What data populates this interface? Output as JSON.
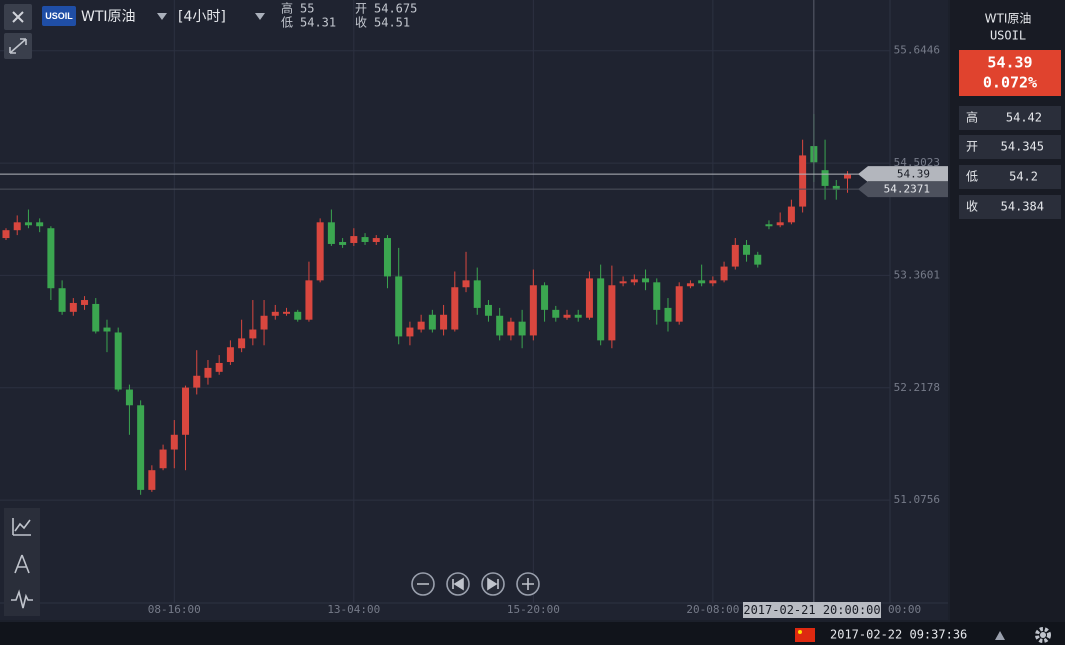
{
  "header": {
    "badge": "USOIL",
    "symbol": "WTI原油",
    "interval": "[4小时]",
    "labels": {
      "high": "高",
      "open": "开",
      "low": "低",
      "close": "收"
    }
  },
  "sidebar": {
    "name": "WTI原油",
    "code": "USOIL",
    "change": "0.072%"
  },
  "status_bar": {
    "datetime": "2017-02-22 09:37:36"
  },
  "chart_data": {
    "type": "candlestick",
    "categories": [
      null,
      null,
      null,
      null,
      null,
      null,
      null,
      null,
      null,
      null,
      null,
      null,
      null,
      null,
      null,
      "08-16:00",
      null,
      null,
      null,
      null,
      null,
      null,
      null,
      null,
      null,
      null,
      null,
      null,
      null,
      null,
      null,
      "13-04:00",
      null,
      null,
      null,
      null,
      null,
      null,
      null,
      null,
      null,
      null,
      null,
      null,
      null,
      null,
      null,
      "15-20:00",
      null,
      null,
      null,
      null,
      null,
      null,
      null,
      null,
      null,
      null,
      null,
      null,
      null,
      null,
      null,
      "20-08:00",
      null,
      null,
      null,
      null,
      null,
      null,
      null,
      null,
      null,
      null,
      null,
      null
    ],
    "open": [
      53.74,
      53.82,
      53.9,
      53.9,
      53.84,
      53.23,
      52.99,
      53.06,
      53.07,
      52.83,
      52.78,
      52.2,
      52.04,
      51.18,
      51.4,
      51.59,
      51.74,
      52.22,
      52.32,
      52.38,
      52.48,
      52.62,
      52.72,
      52.81,
      52.95,
      52.97,
      52.99,
      52.91,
      53.31,
      53.9,
      53.7,
      53.69,
      53.75,
      53.7,
      53.74,
      53.35,
      52.74,
      52.81,
      52.96,
      52.81,
      52.81,
      53.24,
      53.31,
      53.06,
      52.95,
      52.75,
      52.89,
      52.75,
      53.26,
      53.01,
      52.93,
      52.96,
      52.93,
      53.33,
      52.7,
      53.28,
      53.29,
      53.33,
      53.29,
      53.03,
      52.89,
      53.25,
      53.31,
      53.28,
      53.31,
      53.45,
      53.67,
      53.57,
      53.88,
      53.87,
      53.9,
      54.06,
      54.675,
      54.43,
      54.27,
      54.345
    ],
    "high": [
      53.84,
      53.97,
      54.03,
      53.94,
      53.86,
      53.31,
      53.13,
      53.15,
      53.13,
      52.91,
      52.83,
      52.25,
      52.09,
      51.43,
      51.64,
      51.89,
      52.24,
      52.6,
      52.5,
      52.55,
      52.7,
      52.91,
      53.11,
      53.11,
      53.06,
      53.03,
      53.01,
      53.5,
      53.94,
      54.03,
      53.74,
      53.84,
      53.79,
      53.77,
      53.77,
      53.64,
      52.89,
      52.96,
      53.01,
      53.06,
      53.4,
      53.6,
      53.44,
      53.11,
      53.03,
      52.93,
      53.01,
      53.42,
      53.29,
      53.05,
      53.01,
      53.01,
      53.4,
      53.47,
      53.46,
      53.35,
      53.37,
      53.42,
      53.33,
      53.13,
      53.29,
      53.31,
      53.47,
      53.35,
      53.5,
      53.74,
      53.72,
      53.6,
      53.92,
      54.0,
      54.13,
      54.74,
      55,
      54.74,
      54.33,
      54.42
    ],
    "low": [
      53.72,
      53.77,
      53.84,
      53.8,
      53.11,
      52.96,
      52.95,
      53.01,
      52.77,
      52.58,
      52.18,
      51.74,
      51.13,
      51.16,
      51.38,
      51.4,
      51.38,
      52.15,
      52.25,
      52.35,
      52.45,
      52.58,
      52.65,
      52.65,
      52.91,
      52.95,
      52.89,
      52.89,
      53.29,
      53.66,
      53.64,
      53.66,
      53.67,
      53.67,
      53.23,
      52.66,
      52.65,
      52.78,
      52.78,
      52.75,
      52.79,
      53.19,
      52.96,
      52.89,
      52.7,
      52.7,
      52.62,
      52.7,
      52.89,
      52.89,
      52.91,
      52.89,
      52.91,
      52.65,
      52.62,
      53.25,
      53.26,
      53.21,
      52.86,
      52.79,
      52.86,
      53.23,
      53.25,
      53.25,
      53.29,
      53.42,
      53.5,
      53.44,
      53.83,
      53.85,
      53.88,
      54.0,
      54.31,
      54.13,
      54.13,
      54.2
    ],
    "close": [
      53.82,
      53.9,
      53.87,
      53.86,
      53.23,
      52.99,
      53.08,
      53.11,
      52.79,
      52.79,
      52.2,
      52.04,
      51.18,
      51.38,
      51.59,
      51.74,
      52.22,
      52.34,
      52.42,
      52.47,
      52.63,
      52.72,
      52.81,
      52.95,
      52.99,
      52.99,
      52.91,
      53.31,
      53.9,
      53.68,
      53.67,
      53.76,
      53.7,
      53.74,
      53.35,
      52.74,
      52.83,
      52.89,
      52.81,
      52.96,
      53.24,
      53.31,
      53.03,
      52.95,
      52.75,
      52.89,
      52.75,
      53.26,
      53.01,
      52.93,
      52.96,
      52.93,
      53.33,
      52.7,
      53.26,
      53.3,
      53.32,
      53.29,
      53.01,
      52.89,
      53.25,
      53.28,
      53.28,
      53.31,
      53.45,
      53.67,
      53.57,
      53.47,
      53.86,
      53.9,
      54.06,
      54.58,
      54.51,
      54.27,
      54.23,
      54.384
    ],
    "up_color": "#d9473f",
    "down_color": "#3ba650",
    "ylim": [
      50.03,
      56.16
    ],
    "yticks": [
      55.6446,
      54.5023,
      53.3601,
      52.2178,
      51.0756
    ],
    "grid": true,
    "price_lines": [
      {
        "value": 54.39,
        "color": "#b3b6bd"
      },
      {
        "value": 54.2371,
        "color": "#4d515d"
      }
    ],
    "crosshair_label": "2017-02-21 20:00:00",
    "partial_tick_label": "00:00"
  }
}
